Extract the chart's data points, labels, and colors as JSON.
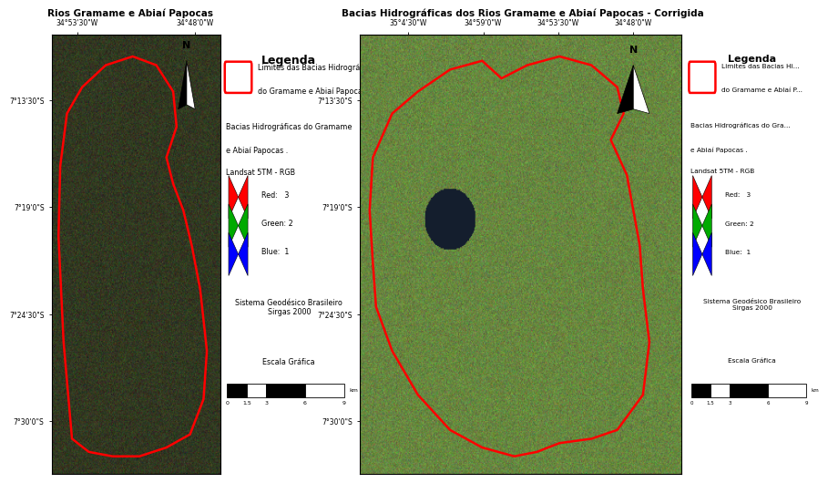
{
  "left_title_partial": "Rios Gramame e Abiaí Papocas",
  "right_title": "Bacias Hidrográficas dos Rios Gramame e Abiaí Papocas - Corrigida",
  "legend_title": "Legenda",
  "legend_line1": "Limites das Bacias Hidrográficas",
  "legend_line2": "do Gramame e Abiaí Papocas",
  "legend_line3_left": "Bacias Hidrográficas do Gramame",
  "legend_line3_right": "Bacias Hidrográficas do Gra...",
  "legend_line4": "e Abiaí Papocas .",
  "legend_line5": "Landsat 5TM - RGB",
  "legend_red": "Red:   3",
  "legend_green": "Green: 2",
  "legend_blue": "Blue:  1",
  "geodesic": "Sistema Geodésico Brasileiro\nSirgas 2000",
  "scale_title": "Escala Gráfica",
  "scale_labels": [
    "0",
    "1.5",
    "3",
    "6",
    "9"
  ],
  "scale_unit": "km",
  "north_label": "N",
  "left_xticks": [
    "34°53'30\"W",
    "34°48'0\"W"
  ],
  "left_yticks": [
    "7°13'30\"S",
    "7°19'0\"S",
    "7°24'30\"S",
    "7°30'0\"S"
  ],
  "right_xticks": [
    "35°4'30\"W",
    "34°59'0\"W",
    "34°53'30\"W",
    "34°48'0\"W"
  ],
  "right_yticks": [
    "7°13'30\"S",
    "7°19'0\"S",
    "7°24'30\"S",
    "7°30'0\"S"
  ],
  "bg_color": "#ffffff"
}
